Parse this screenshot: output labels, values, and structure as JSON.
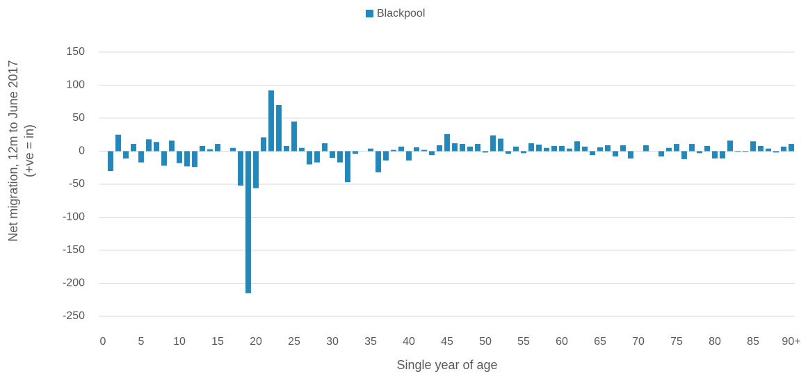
{
  "chart_data": {
    "type": "bar",
    "legend": "Blackpool",
    "ylabel": [
      "Net migration, 12m to June 2017",
      "(+ve = in)"
    ],
    "xlabel": "Single year of age",
    "color": "#1f88bf",
    "grid": true,
    "legend_position": "top",
    "categories": [
      "0",
      null,
      null,
      null,
      null,
      "5",
      null,
      null,
      null,
      null,
      "10",
      null,
      null,
      null,
      null,
      "15",
      null,
      null,
      null,
      null,
      "20",
      null,
      null,
      null,
      null,
      "25",
      null,
      null,
      null,
      null,
      "30",
      null,
      null,
      null,
      null,
      "35",
      null,
      null,
      null,
      null,
      "40",
      null,
      null,
      null,
      null,
      "45",
      null,
      null,
      null,
      null,
      "50",
      null,
      null,
      null,
      null,
      "55",
      null,
      null,
      null,
      null,
      "60",
      null,
      null,
      null,
      null,
      "65",
      null,
      null,
      null,
      null,
      "70",
      null,
      null,
      null,
      null,
      "75",
      null,
      null,
      null,
      null,
      "80",
      null,
      null,
      null,
      null,
      "85",
      null,
      null,
      null,
      null,
      "90+"
    ],
    "values": [
      0,
      -30,
      25,
      -11,
      11,
      -17,
      18,
      14,
      -22,
      16,
      -18,
      -23,
      -24,
      8,
      3,
      11,
      0,
      5,
      -52,
      -215,
      -56,
      21,
      92,
      70,
      8,
      45,
      5,
      -20,
      -17,
      12,
      -10,
      -17,
      -47,
      -4,
      0,
      4,
      -32,
      -14,
      2,
      7,
      -14,
      6,
      2,
      -6,
      9,
      26,
      12,
      11,
      7,
      11,
      -2,
      24,
      19,
      -4,
      7,
      -3,
      12,
      10,
      5,
      8,
      8,
      4,
      15,
      7,
      -6,
      6,
      9,
      -8,
      9,
      -11,
      0,
      9,
      0,
      -8,
      5,
      11,
      -12,
      11,
      -3,
      8,
      -11,
      -11,
      16,
      -1,
      -1,
      15,
      8,
      4,
      -2,
      7,
      11
    ],
    "ylim": [
      -250,
      150
    ],
    "yticks": [
      -250,
      -200,
      -150,
      -100,
      -50,
      0,
      50,
      100,
      150
    ]
  }
}
